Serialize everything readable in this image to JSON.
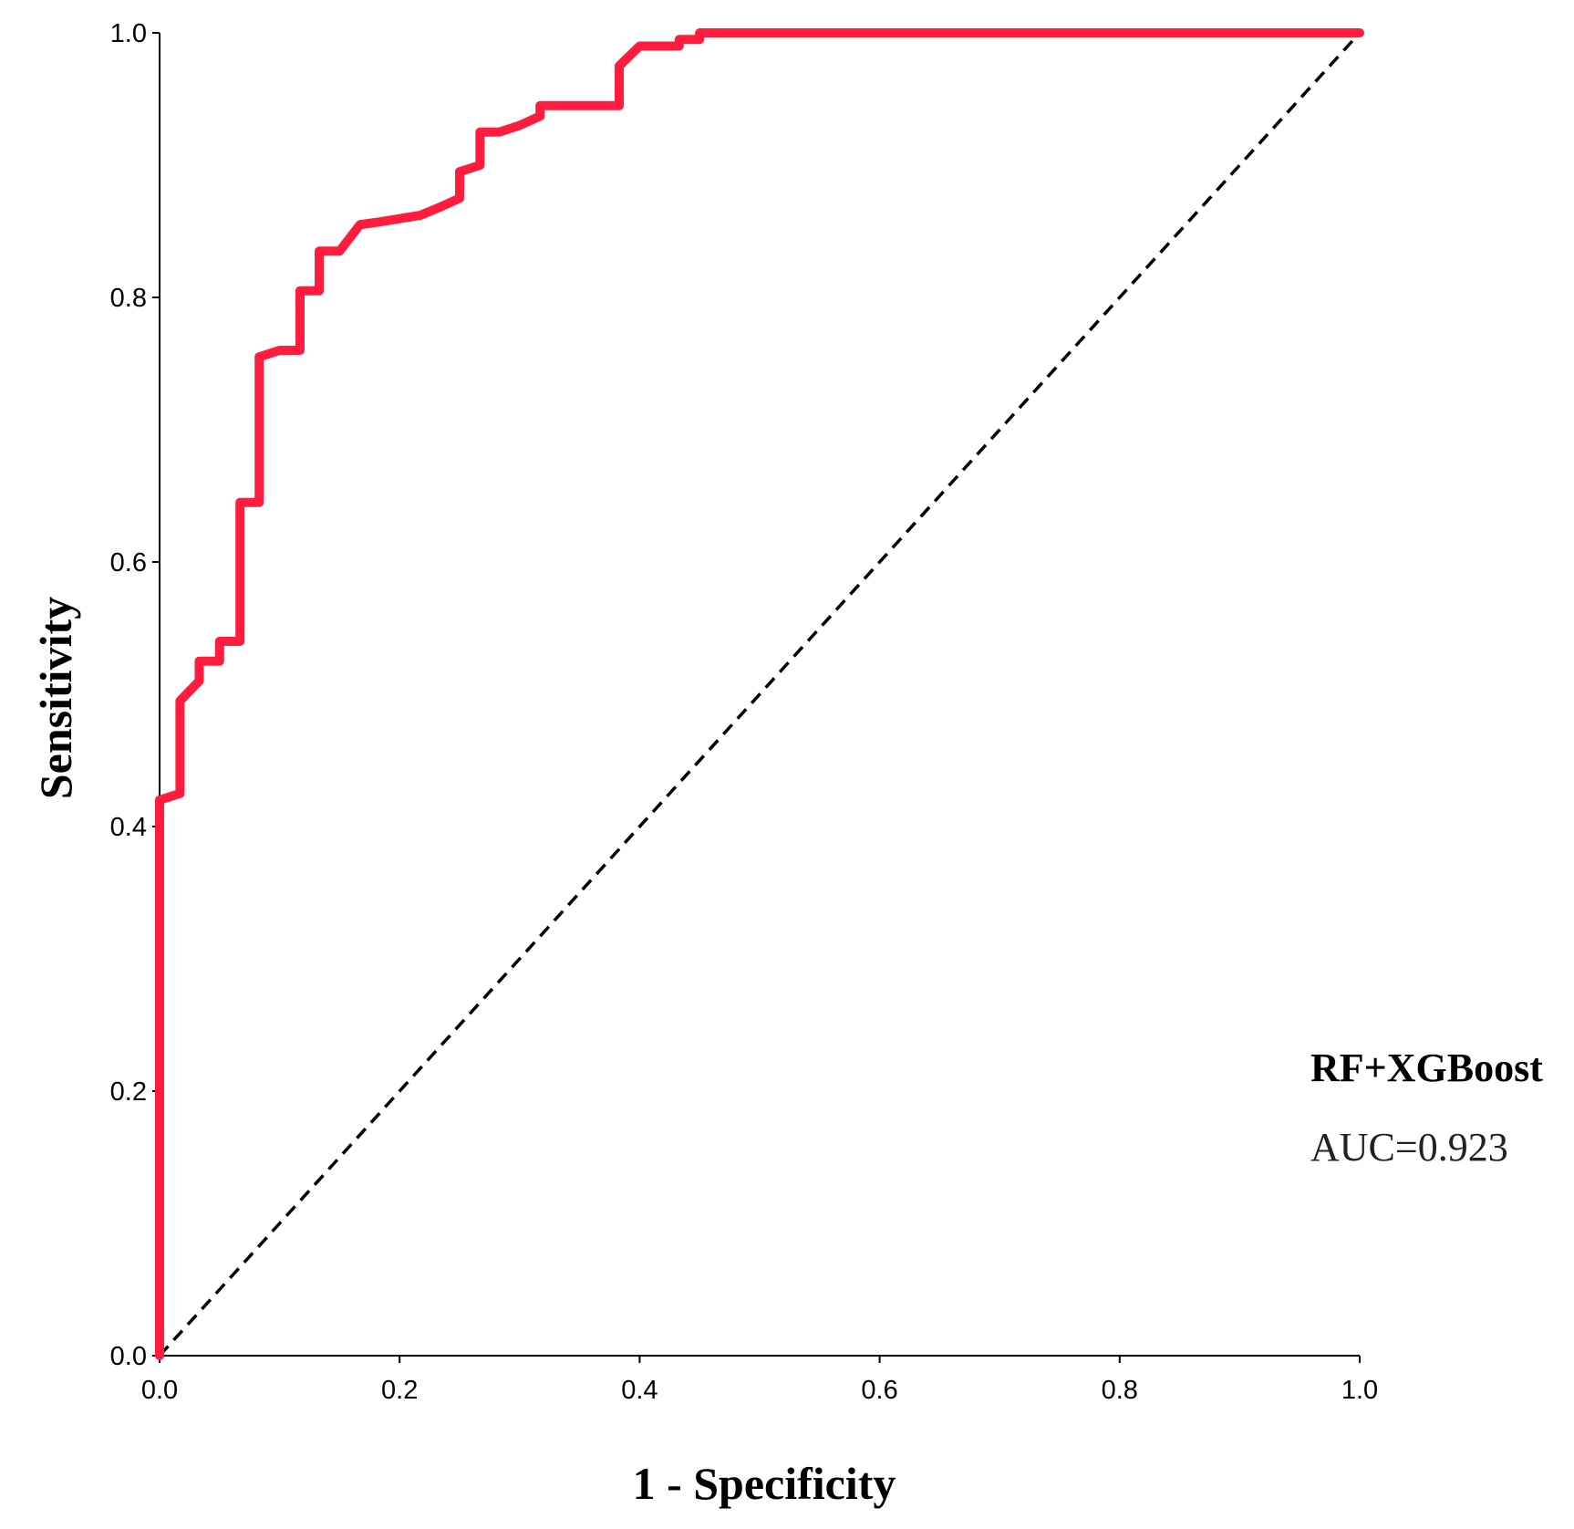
{
  "chart_data": {
    "type": "line",
    "title": "",
    "xlabel": "1 - Specificity",
    "ylabel": "Sensitivity",
    "xlim": [
      0,
      1
    ],
    "ylim": [
      0,
      1
    ],
    "x_ticks": [
      "0.0",
      "0.2",
      "0.4",
      "0.6",
      "0.8",
      "1.0"
    ],
    "y_ticks": [
      "0.0",
      "0.2",
      "0.4",
      "0.6",
      "0.8",
      "1.0"
    ],
    "grid": false,
    "legend_placement": "right-lower",
    "series": [
      {
        "name": "RF+XGBoost",
        "auc_label": "AUC=0.923",
        "color": "#ff1c3c",
        "x": [
          0.0,
          0.0,
          0.017,
          0.017,
          0.033,
          0.033,
          0.05,
          0.05,
          0.067,
          0.067,
          0.083,
          0.083,
          0.1,
          0.117,
          0.117,
          0.133,
          0.133,
          0.15,
          0.167,
          0.183,
          0.217,
          0.233,
          0.25,
          0.25,
          0.267,
          0.267,
          0.283,
          0.3,
          0.317,
          0.317,
          0.333,
          0.383,
          0.383,
          0.4,
          0.433,
          0.433,
          0.45,
          0.45,
          1.0
        ],
        "y": [
          0.0,
          0.42,
          0.425,
          0.495,
          0.51,
          0.525,
          0.525,
          0.54,
          0.54,
          0.645,
          0.645,
          0.755,
          0.76,
          0.76,
          0.805,
          0.805,
          0.835,
          0.835,
          0.855,
          0.857,
          0.862,
          0.868,
          0.875,
          0.895,
          0.9,
          0.925,
          0.925,
          0.93,
          0.937,
          0.945,
          0.945,
          0.945,
          0.975,
          0.99,
          0.99,
          0.995,
          0.995,
          1.0,
          1.0
        ]
      },
      {
        "name": "Reference",
        "color": "#000000",
        "style": "dashed",
        "x": [
          0,
          1
        ],
        "y": [
          0,
          1
        ]
      }
    ]
  }
}
